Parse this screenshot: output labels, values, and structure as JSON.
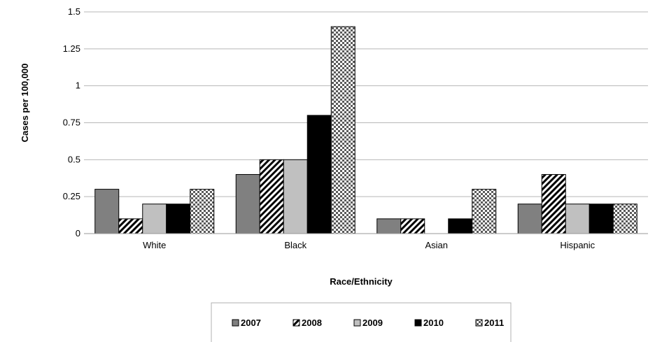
{
  "chart_data": {
    "type": "bar",
    "title": "",
    "xlabel": "Race/Ethnicity",
    "ylabel": "Cases per 100,000",
    "categories": [
      "White",
      "Black",
      "Asian",
      "Hispanic"
    ],
    "ylim": [
      0,
      1.5
    ],
    "yticks": [
      "0",
      "0.25",
      "0.5",
      "0.75",
      "1",
      "1.25",
      "1.5"
    ],
    "grid": true,
    "legend_position": "bottom",
    "series": [
      {
        "name": "2007",
        "values": [
          0.3,
          0.4,
          0.1,
          0.2
        ],
        "color": "#808080",
        "pattern": "solid-gray"
      },
      {
        "name": "2008",
        "values": [
          0.1,
          0.5,
          0.1,
          0.4
        ],
        "color": "#000000",
        "pattern": "diagonal-stripes"
      },
      {
        "name": "2009",
        "values": [
          0.2,
          0.5,
          0.0,
          0.2
        ],
        "color": "#c0c0c0",
        "pattern": "solid-light-gray"
      },
      {
        "name": "2010",
        "values": [
          0.2,
          0.8,
          0.1,
          0.2
        ],
        "color": "#000000",
        "pattern": "solid-black"
      },
      {
        "name": "2011",
        "values": [
          0.3,
          1.4,
          0.3,
          0.2
        ],
        "color": "#000000",
        "pattern": "checker-dots"
      }
    ]
  }
}
